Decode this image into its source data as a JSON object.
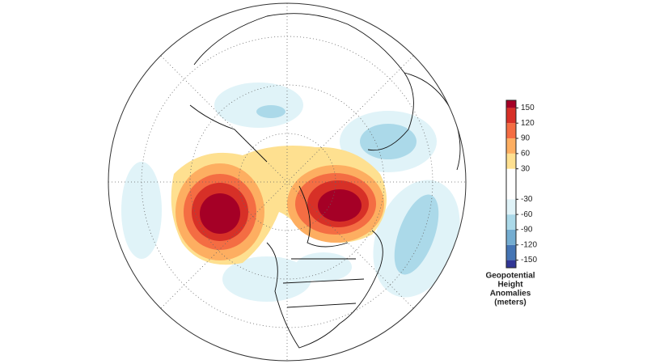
{
  "colorbar": {
    "ticks": [
      150,
      120,
      90,
      60,
      30,
      -30,
      -60,
      -90,
      -120,
      -150
    ],
    "lim": [
      -165,
      165
    ],
    "colors": [
      "#313695",
      "#4575b4",
      "#74add1",
      "#abd9e9",
      "#e0f3f8",
      "#ffffff",
      "#fee090",
      "#fdae61",
      "#f46d43",
      "#d73027",
      "#a50026"
    ],
    "label": [
      "Geopotential",
      "Height",
      "Anomalies",
      "(meters)"
    ]
  }
}
